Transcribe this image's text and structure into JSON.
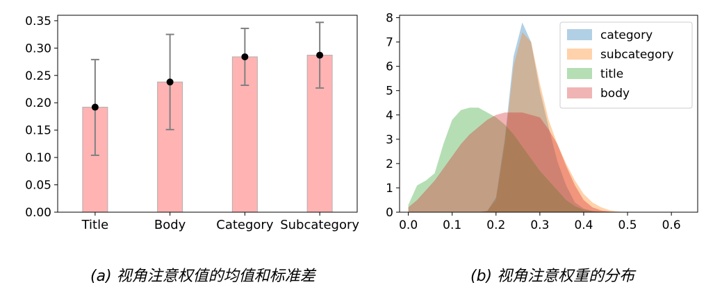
{
  "chart_data": [
    {
      "type": "bar",
      "categories": [
        "Title",
        "Body",
        "Category",
        "Subcategory"
      ],
      "values": [
        0.192,
        0.238,
        0.284,
        0.287
      ],
      "error_low": [
        0.104,
        0.151,
        0.232,
        0.227
      ],
      "error_high": [
        0.279,
        0.325,
        0.336,
        0.347
      ],
      "ylim": [
        0.0,
        0.36
      ],
      "yticks": [
        "0.00",
        "0.05",
        "0.10",
        "0.15",
        "0.20",
        "0.25",
        "0.30",
        "0.35"
      ],
      "ytick_values": [
        0.0,
        0.05,
        0.1,
        0.15,
        0.2,
        0.25,
        0.3,
        0.35
      ],
      "grid": false,
      "colors": {
        "bar_fill": "#ffb3b3",
        "bar_edge": "#b0b0b0",
        "errorbar": "#808080",
        "marker": "#000000"
      },
      "caption": "(a) 视角注意权值的均值和标准差"
    },
    {
      "type": "area",
      "x": [
        0.0,
        0.02,
        0.04,
        0.06,
        0.08,
        0.1,
        0.12,
        0.14,
        0.16,
        0.18,
        0.2,
        0.22,
        0.24,
        0.26,
        0.28,
        0.3,
        0.32,
        0.34,
        0.36,
        0.38,
        0.4,
        0.42,
        0.44,
        0.46,
        0.48,
        0.5,
        0.52
      ],
      "series": [
        {
          "name": "category",
          "color": "#1f77b4",
          "values": [
            0,
            0,
            0,
            0,
            0,
            0,
            0,
            0,
            0,
            0.05,
            0.6,
            3.0,
            6.4,
            7.8,
            7.0,
            5.0,
            3.5,
            2.1,
            1.1,
            0.4,
            0.15,
            0.05,
            0.02,
            0,
            0,
            0,
            0
          ]
        },
        {
          "name": "subcategory",
          "color": "#ff7f0e",
          "values": [
            0,
            0,
            0,
            0,
            0,
            0,
            0,
            0,
            0,
            0.05,
            0.5,
            2.8,
            6.0,
            7.4,
            7.0,
            5.3,
            3.8,
            2.8,
            2.0,
            1.3,
            0.75,
            0.4,
            0.2,
            0.08,
            0.02,
            0,
            0
          ]
        },
        {
          "name": "title",
          "color": "#2ca02c",
          "values": [
            0.3,
            1.1,
            1.3,
            1.6,
            2.8,
            3.8,
            4.2,
            4.3,
            4.3,
            4.1,
            3.9,
            3.6,
            3.2,
            2.7,
            2.2,
            1.7,
            1.3,
            0.9,
            0.5,
            0.25,
            0.1,
            0.04,
            0.01,
            0,
            0,
            0,
            0
          ]
        },
        {
          "name": "body",
          "color": "#d62728",
          "values": [
            0.2,
            0.5,
            0.9,
            1.3,
            1.8,
            2.3,
            2.8,
            3.2,
            3.5,
            3.8,
            4.0,
            4.1,
            4.1,
            4.1,
            4.0,
            3.9,
            3.4,
            2.8,
            1.9,
            1.1,
            0.5,
            0.2,
            0.07,
            0.02,
            0,
            0,
            0
          ]
        }
      ],
      "xlim": [
        -0.02,
        0.66
      ],
      "ylim": [
        0,
        8.1
      ],
      "xticks": [
        "0.0",
        "0.1",
        "0.2",
        "0.3",
        "0.4",
        "0.5",
        "0.6"
      ],
      "xtick_values": [
        0.0,
        0.1,
        0.2,
        0.3,
        0.4,
        0.5,
        0.6
      ],
      "yticks": [
        "0",
        "1",
        "2",
        "3",
        "4",
        "5",
        "6",
        "7",
        "8"
      ],
      "ytick_values": [
        0,
        1,
        2,
        3,
        4,
        5,
        6,
        7,
        8
      ],
      "legend": "top-right",
      "alpha": 0.35,
      "grid": false,
      "caption": "(b) 视角注意权重的分布"
    }
  ]
}
